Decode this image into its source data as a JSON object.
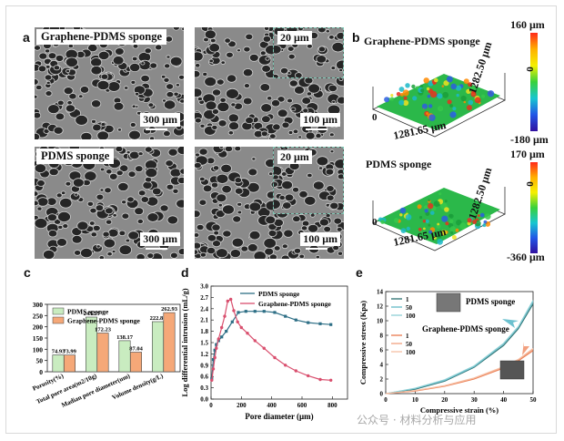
{
  "panels": {
    "a": "a",
    "b": "b",
    "c": "c",
    "d": "d",
    "e": "e"
  },
  "sem": {
    "graphene_label": "Graphene-PDMS sponge",
    "pdms_label": "PDMS sponge",
    "scale_300": "300 μm",
    "scale_100": "100 μm",
    "scale_20": "20 μm"
  },
  "topo": {
    "title_g": "Graphene-PDMS sponge",
    "title_p": "PDMS sponge",
    "max_g": "160 μm",
    "zero": "0",
    "min_g": "-180 μm",
    "max_p": "170 μm",
    "min_p": "-360 μm",
    "x_dim": "1281.65 μm",
    "y_dim": "1282.50 μm",
    "origin": "0"
  },
  "chart_data": [
    {
      "type": "bar",
      "categories": [
        "Porosity(%)",
        "Total pore area(m2/10g)",
        "Madian pore diameter(um)",
        "Volume density(g/L)"
      ],
      "series": [
        {
          "name": "PDMS sponge",
          "values": [
            74.93,
            243.25,
            138.17,
            222.81
          ],
          "labels": [
            "74.93",
            "243.25",
            "138.17",
            "222.81"
          ],
          "color": "#c9ecc0"
        },
        {
          "name": "Graphene-PDMS sponge",
          "values": [
            73.99,
            172.23,
            87.04,
            262.93
          ],
          "labels": [
            "73.99",
            "172.23",
            "87.04",
            "262.93"
          ],
          "color": "#f5a878"
        }
      ],
      "yticks": [
        "0",
        "50",
        "100",
        "150",
        "200",
        "250",
        "300"
      ],
      "ylim": [
        0,
        300
      ]
    },
    {
      "type": "line",
      "xlabel": "Pore diameter (μm)",
      "ylabel": "Log differential intrusion (mL/g)",
      "xlim": [
        0,
        900
      ],
      "ylim": [
        0,
        3.0
      ],
      "xticks": [
        "0",
        "200",
        "400",
        "600",
        "800"
      ],
      "yticks": [
        "0.0",
        "0.3",
        "0.6",
        "0.9",
        "1.2",
        "1.5",
        "1.8",
        "2.1",
        "2.4",
        "2.7",
        "3.0"
      ],
      "series": [
        {
          "name": "PDMS sponge",
          "color": "#2e6f86",
          "x": [
            5,
            15,
            25,
            35,
            50,
            70,
            100,
            140,
            180,
            230,
            290,
            350,
            420,
            490,
            560,
            640,
            720,
            790
          ],
          "y": [
            0.55,
            1.05,
            1.3,
            1.45,
            1.55,
            1.65,
            1.8,
            2.05,
            2.3,
            2.33,
            2.33,
            2.33,
            2.3,
            2.2,
            2.1,
            2.03,
            2.0,
            1.98
          ]
        },
        {
          "name": "Graphene-PDMS sponge",
          "color": "#d94f6e",
          "x": [
            5,
            15,
            25,
            35,
            50,
            70,
            90,
            110,
            130,
            150,
            175,
            200,
            240,
            290,
            350,
            420,
            490,
            560,
            640,
            720,
            790
          ],
          "y": [
            0.5,
            0.8,
            1.1,
            1.35,
            1.6,
            1.9,
            2.2,
            2.6,
            2.65,
            2.35,
            2.05,
            1.9,
            1.75,
            1.55,
            1.35,
            1.1,
            0.9,
            0.75,
            0.62,
            0.52,
            0.5
          ]
        }
      ]
    },
    {
      "type": "line",
      "xlabel": "Compressive strain (%)",
      "ylabel": "Compressive stress (Kpa)",
      "xlim": [
        0,
        50
      ],
      "ylim": [
        0,
        14
      ],
      "xticks": [
        "0",
        "10",
        "20",
        "30",
        "40",
        "50"
      ],
      "yticks": [
        "0",
        "2",
        "4",
        "6",
        "8",
        "10",
        "12",
        "14"
      ],
      "series": [
        {
          "name": "1",
          "group": "PDMS sponge",
          "color": "#2b6f6f",
          "x": [
            0,
            10,
            20,
            30,
            40,
            45,
            50
          ],
          "y": [
            0,
            0.6,
            1.7,
            3.6,
            6.6,
            8.9,
            12.3
          ]
        },
        {
          "name": "50",
          "group": "PDMS sponge",
          "color": "#64b9c7",
          "x": [
            0,
            10,
            20,
            30,
            40,
            45,
            50
          ],
          "y": [
            0,
            0.7,
            1.8,
            3.7,
            6.8,
            9.1,
            12.6
          ]
        },
        {
          "name": "100",
          "group": "PDMS sponge",
          "color": "#8ed0d6",
          "x": [
            0,
            10,
            20,
            30,
            40,
            45,
            50
          ],
          "y": [
            0,
            0.75,
            1.9,
            3.8,
            6.9,
            9.2,
            12.8
          ]
        },
        {
          "name": "1",
          "group": "Graphene-PDMS sponge",
          "color": "#e97a4e",
          "x": [
            0,
            10,
            20,
            30,
            40,
            45,
            50
          ],
          "y": [
            0,
            0.35,
            1.0,
            2.0,
            3.5,
            4.5,
            5.9
          ]
        },
        {
          "name": "50",
          "group": "Graphene-PDMS sponge",
          "color": "#f2a07f",
          "x": [
            0,
            10,
            20,
            30,
            40,
            45,
            50
          ],
          "y": [
            0,
            0.4,
            1.05,
            2.1,
            3.6,
            4.6,
            6.1
          ]
        },
        {
          "name": "100",
          "group": "Graphene-PDMS sponge",
          "color": "#f6bfa3",
          "x": [
            0,
            10,
            20,
            30,
            40,
            45,
            50
          ],
          "y": [
            0,
            0.42,
            1.1,
            2.15,
            3.7,
            4.7,
            6.2
          ]
        }
      ],
      "group_labels": [
        "PDMS sponge",
        "Graphene-PDMS sponge"
      ]
    }
  ],
  "watermark": "公众号 · 材料分析与应用"
}
